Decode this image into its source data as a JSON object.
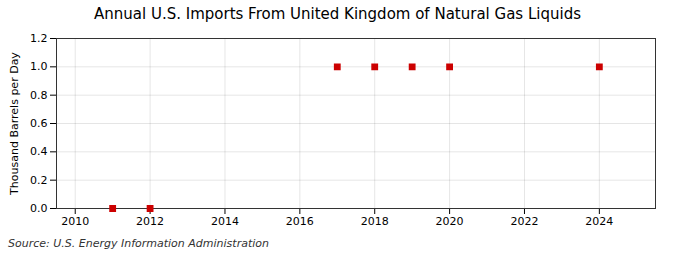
{
  "chart_data": {
    "type": "scatter",
    "title": "Annual U.S. Imports From United Kingdom of Natural Gas Liquids",
    "ylabel": "Thousand Barrels per Day",
    "source": "Source: U.S. Energy Information Administration",
    "x": [
      2011,
      2012,
      2017,
      2018,
      2019,
      2020,
      2024
    ],
    "values": [
      0.0,
      0.0,
      1.0,
      1.0,
      1.0,
      1.0,
      1.0
    ],
    "color": "#cc0000",
    "marker": "square",
    "xlim": [
      2009.5,
      2025.5
    ],
    "ylim": [
      0.0,
      1.2
    ],
    "xticks": [
      2010,
      2012,
      2014,
      2016,
      2018,
      2020,
      2022,
      2024
    ],
    "yticks": [
      {
        "value": 0.0,
        "label": "0.0"
      },
      0.2,
      0.4,
      0.6,
      0.8,
      {
        "value": 1.0,
        "label": "1.0"
      },
      1.2
    ],
    "grid": true
  }
}
